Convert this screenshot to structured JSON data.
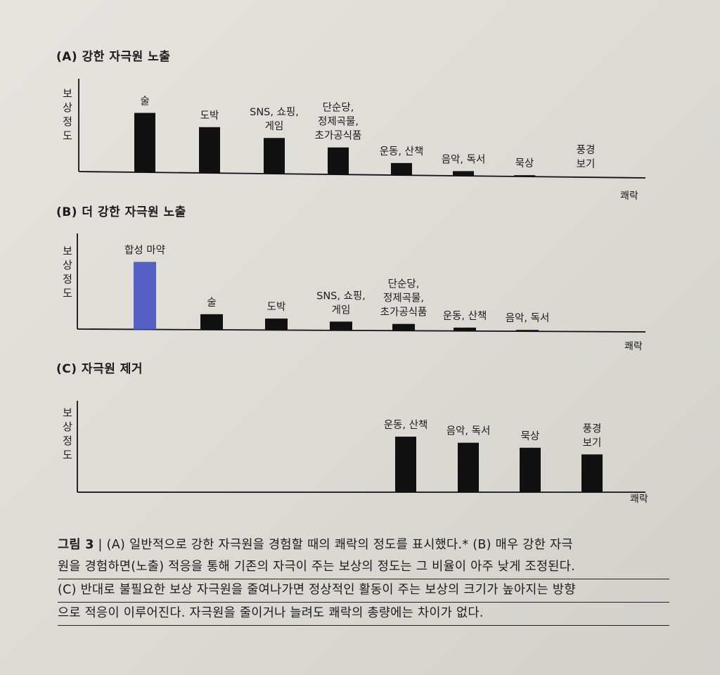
{
  "chart_data": [
    {
      "type": "bar",
      "title": "(A) 강한 자극원 노출",
      "ylabel": "보상 정도",
      "xlabel": "쾌락",
      "categories": [
        "술",
        "도박",
        "SNS, 쇼핑,\n게임",
        "단순당,\n정제곡물,\n초가공식품",
        "운동, 산책",
        "음악, 독서",
        "묵상",
        "풍경\n보기"
      ],
      "values": [
        88,
        68,
        53,
        40,
        18,
        7,
        2,
        0
      ],
      "ylim": [
        0,
        100
      ],
      "bar_color": "#111111",
      "grid": false
    },
    {
      "type": "bar",
      "title": "(B) 더 강한 자극원 노출",
      "ylabel": "보상 정도",
      "xlabel": "쾌락",
      "categories": [
        "합성 마약",
        "술",
        "도박",
        "SNS, 쇼핑,\n게임",
        "단순당,\n정제곡물,\n초가공식품",
        "운동, 산책",
        "음악, 독서"
      ],
      "values": [
        100,
        23,
        17,
        13,
        10,
        5,
        2
      ],
      "ylim": [
        0,
        100
      ],
      "bar_color": "#111111",
      "highlight_color": "#5560c4",
      "grid": false
    },
    {
      "type": "bar",
      "title": "(C) 자극원 제거",
      "ylabel": "보상 정도",
      "xlabel": "쾌락",
      "categories": [
        "운동, 산책",
        "음악, 독서",
        "묵상",
        "풍경\n보기"
      ],
      "values": [
        100,
        89,
        80,
        68
      ],
      "ylim": [
        0,
        100
      ],
      "bar_color": "#111111",
      "grid": false
    }
  ],
  "caption": {
    "figure_label": "그림 3",
    "separator": "|",
    "line1": "(A) 일반적으로 강한 자극원을 경험할 때의 쾌락의 정도를 표시했다.* (B) 매우 강한 자극",
    "line2": "원을 경험하면(노출) 적응을 통해 기존의 자극이 주는 보상의 정도는 그 비율이 아주 낮게 조정된다.",
    "line3": "(C) 반대로 불필요한 보상 자극원을 줄여나가면 정상적인 활동이 주는 보상의 크기가 높아지는 방향",
    "line4": "으로 적응이 이루어진다. 자극원을 줄이거나 늘려도 쾌락의 총량에는 차이가 없다."
  }
}
